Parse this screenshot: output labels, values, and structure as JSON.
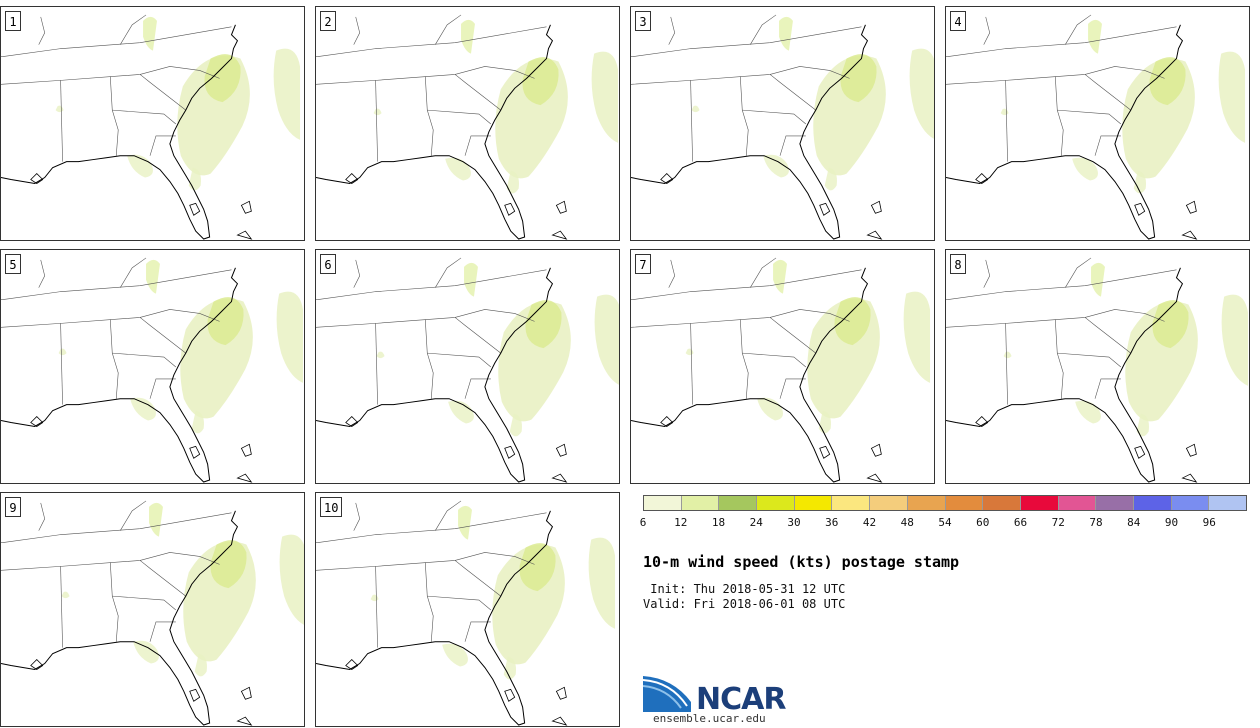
{
  "panels": [
    {
      "label": "1"
    },
    {
      "label": "2"
    },
    {
      "label": "3"
    },
    {
      "label": "4"
    },
    {
      "label": "5"
    },
    {
      "label": "6"
    },
    {
      "label": "7"
    },
    {
      "label": "8"
    },
    {
      "label": "9"
    },
    {
      "label": "10"
    }
  ],
  "colorbar": {
    "colors": [
      "#f2f6d8",
      "#e2f0a6",
      "#a5c75e",
      "#dce81c",
      "#f4e800",
      "#fbe77f",
      "#f4cd7c",
      "#e8a450",
      "#e38c3d",
      "#d8783a",
      "#e8093b",
      "#e25594",
      "#986fa7",
      "#5d63e7",
      "#7a8df0",
      "#b0c4f2"
    ],
    "ticks": [
      "6",
      "12",
      "18",
      "24",
      "30",
      "36",
      "42",
      "48",
      "54",
      "60",
      "66",
      "72",
      "78",
      "84",
      "90",
      "96"
    ]
  },
  "title": "10-m wind speed (kts) postage stamp",
  "init": " Init: Thu 2018-05-31 12 UTC",
  "valid": "Valid: Fri 2018-06-01 08 UTC",
  "logo": {
    "text": "NCAR",
    "site": "ensemble.ucar.edu",
    "color": "#1c3f7a"
  }
}
